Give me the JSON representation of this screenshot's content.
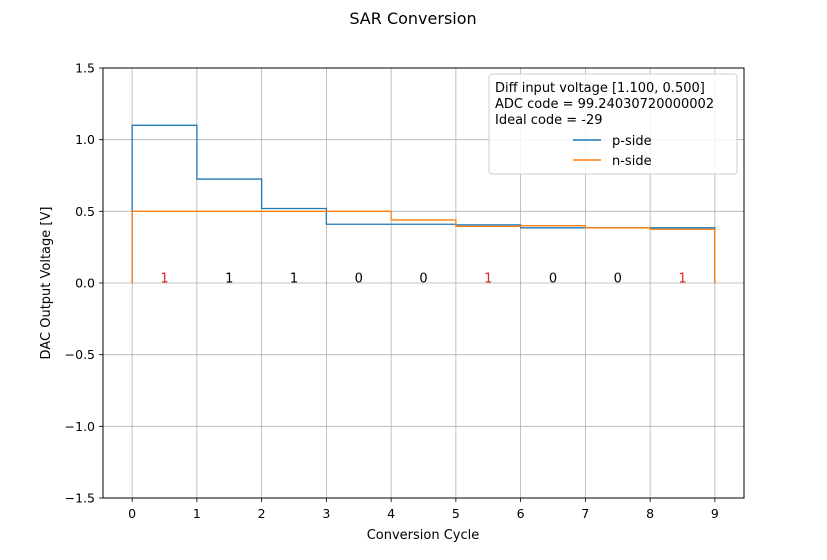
{
  "chart_data": {
    "type": "line",
    "title": "SAR Conversion",
    "xlabel": "Conversion Cycle",
    "ylabel": "DAC Output Voltage [V]",
    "xlim": [
      -0.45,
      9.45
    ],
    "ylim": [
      -1.5,
      1.5
    ],
    "xticks": [
      0,
      1,
      2,
      3,
      4,
      5,
      6,
      7,
      8,
      9
    ],
    "yticks": [
      -1.5,
      -1.0,
      -0.5,
      0.0,
      0.5,
      1.0,
      1.5
    ],
    "ytick_labels": [
      "−1.5",
      "−1.0",
      "−0.5",
      "0.0",
      "0.5",
      "1.0",
      "1.5"
    ],
    "grid": true,
    "legend": {
      "placement": "top-right",
      "info_lines": [
        "Diff input voltage [1.100, 0.500]",
        "ADC code = 99.24030720000002",
        "Ideal code = -29"
      ]
    },
    "series": [
      {
        "name": "p-side",
        "color": "#1f77b4",
        "steps": [
          {
            "x0": 0,
            "x1": 1,
            "y": 1.1
          },
          {
            "x0": 1,
            "x1": 2,
            "y": 0.725
          },
          {
            "x0": 2,
            "x1": 3,
            "y": 0.52
          },
          {
            "x0": 3,
            "x1": 4,
            "y": 0.41
          },
          {
            "x0": 4,
            "x1": 5,
            "y": 0.41
          },
          {
            "x0": 5,
            "x1": 6,
            "y": 0.405
          },
          {
            "x0": 6,
            "x1": 7,
            "y": 0.385
          },
          {
            "x0": 7,
            "x1": 8,
            "y": 0.385
          },
          {
            "x0": 8,
            "x1": 9,
            "y": 0.385
          }
        ]
      },
      {
        "name": "n-side",
        "color": "#ff7f0e",
        "steps": [
          {
            "x0": 0,
            "x1": 1,
            "y": 0.5
          },
          {
            "x0": 1,
            "x1": 2,
            "y": 0.5
          },
          {
            "x0": 2,
            "x1": 3,
            "y": 0.5
          },
          {
            "x0": 3,
            "x1": 4,
            "y": 0.5
          },
          {
            "x0": 4,
            "x1": 5,
            "y": 0.44
          },
          {
            "x0": 5,
            "x1": 6,
            "y": 0.395
          },
          {
            "x0": 6,
            "x1": 7,
            "y": 0.4
          },
          {
            "x0": 7,
            "x1": 8,
            "y": 0.385
          },
          {
            "x0": 8,
            "x1": 9,
            "y": 0.375
          }
        ]
      }
    ],
    "bit_labels": [
      {
        "x": 0.5,
        "text": "1",
        "color": "#d62728"
      },
      {
        "x": 1.5,
        "text": "1",
        "color": "#000000"
      },
      {
        "x": 2.5,
        "text": "1",
        "color": "#000000"
      },
      {
        "x": 3.5,
        "text": "0",
        "color": "#000000"
      },
      {
        "x": 4.5,
        "text": "0",
        "color": "#000000"
      },
      {
        "x": 5.5,
        "text": "1",
        "color": "#d62728"
      },
      {
        "x": 6.5,
        "text": "0",
        "color": "#000000"
      },
      {
        "x": 7.5,
        "text": "0",
        "color": "#000000"
      },
      {
        "x": 8.5,
        "text": "1",
        "color": "#d62728"
      }
    ],
    "colors": {
      "grid": "#b0b0b0",
      "axes": "#000000"
    }
  }
}
